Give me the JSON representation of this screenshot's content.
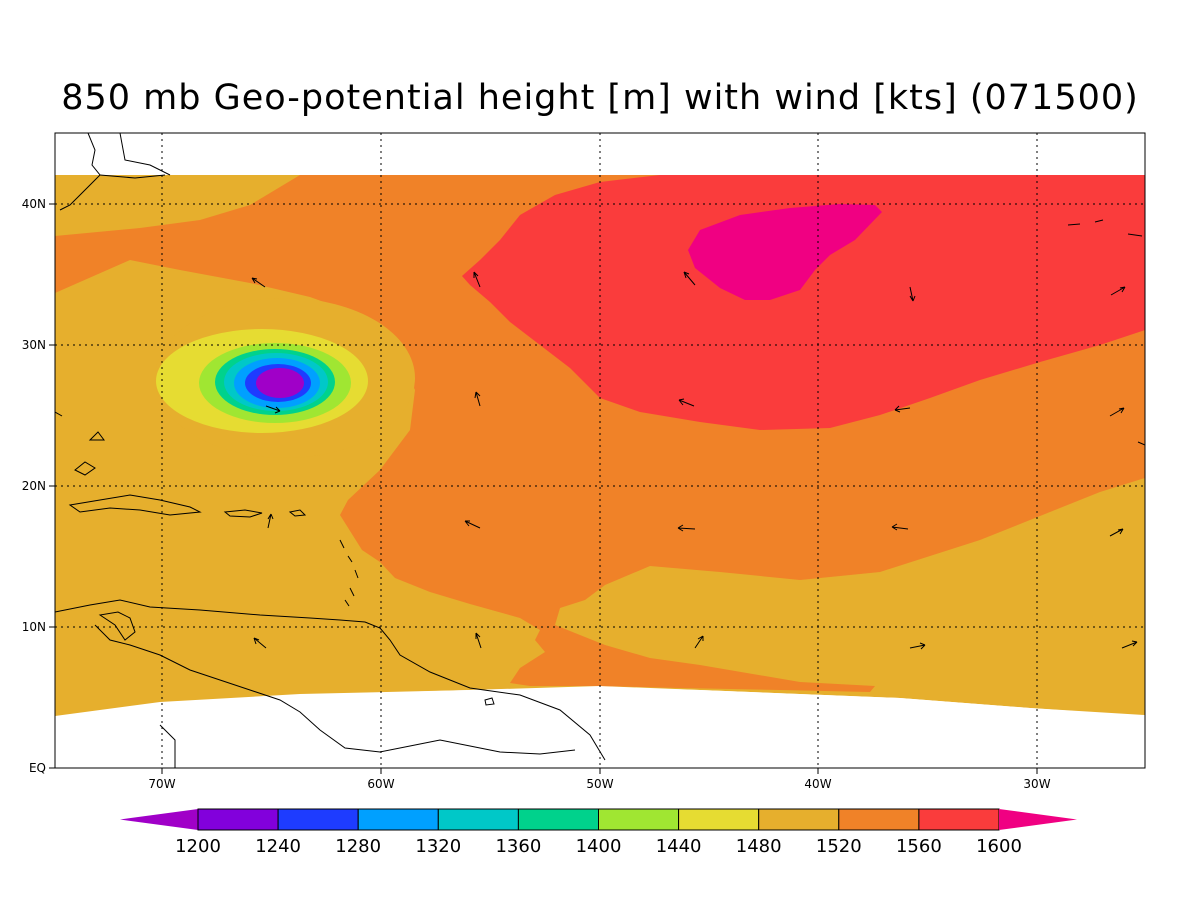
{
  "title": "850 mb Geo-potential height [m] with wind [kts] (071500)",
  "lat_labels": [
    "EQ",
    "10N",
    "20N",
    "30N",
    "40N"
  ],
  "lon_labels": [
    "70W",
    "60W",
    "50W",
    "40W",
    "30W"
  ],
  "colorbar": {
    "levels": [
      "1200",
      "1240",
      "1280",
      "1320",
      "1360",
      "1400",
      "1440",
      "1480",
      "1520",
      "1560",
      "1600"
    ],
    "colors": [
      "#a000c8",
      "#8200dc",
      "#1e3cff",
      "#00a0ff",
      "#00c8c8",
      "#00d28c",
      "#a0e632",
      "#e6dc32",
      "#e6af2d",
      "#f08228",
      "#fa3c3c",
      "#f00082"
    ]
  },
  "colors": {
    "h_1480_1520": "#e6af2d",
    "h_1520_1560": "#f08228",
    "h_1560_1600": "#fa3c3c",
    "h_gt_1600": "#f00082",
    "h_1440_1480": "#e6dc32"
  }
}
